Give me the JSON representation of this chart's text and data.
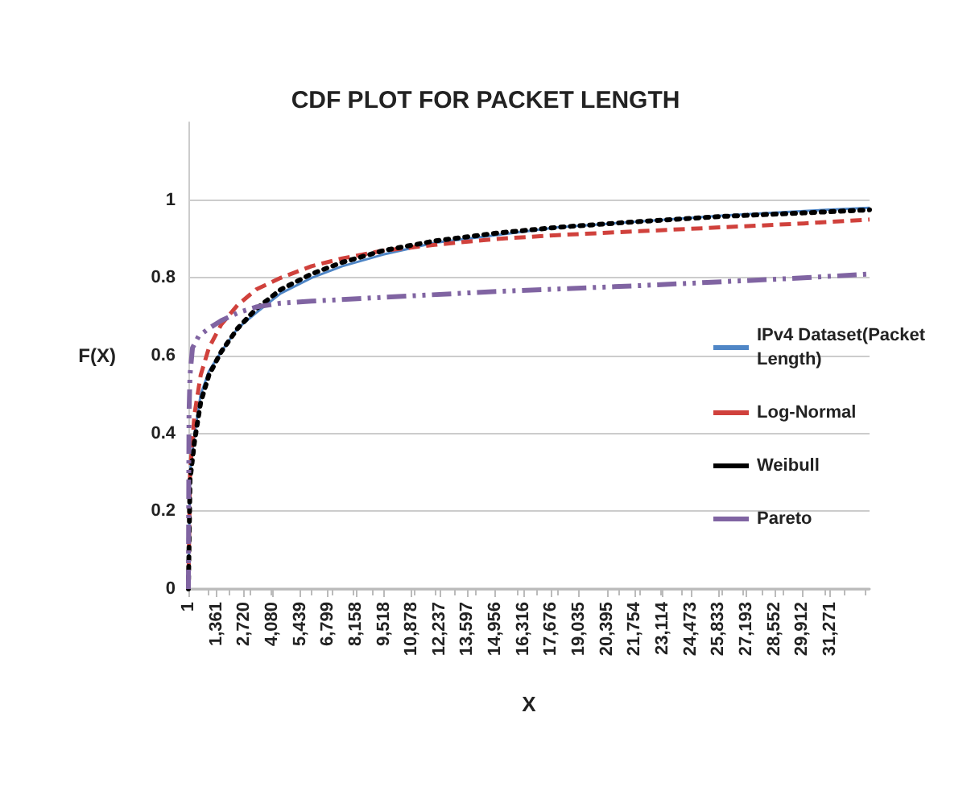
{
  "chart_data": {
    "type": "line",
    "title": "CDF PLOT FOR PACKET LENGTH",
    "xlabel": "X",
    "ylabel": "F(X)",
    "xlim": [
      1,
      33200
    ],
    "ylim": [
      0,
      1.2
    ],
    "yticks": [
      0,
      0.2,
      0.4,
      0.6,
      0.8,
      1
    ],
    "xticks": [
      {
        "value": 1,
        "label": "1"
      },
      {
        "value": 1361,
        "label": "1,361"
      },
      {
        "value": 2720,
        "label": "2,720"
      },
      {
        "value": 4080,
        "label": "4,080"
      },
      {
        "value": 5439,
        "label": "5,439"
      },
      {
        "value": 6799,
        "label": "6,799"
      },
      {
        "value": 8158,
        "label": "8,158"
      },
      {
        "value": 9518,
        "label": "9,518"
      },
      {
        "value": 10878,
        "label": "10,878"
      },
      {
        "value": 12237,
        "label": "12,237"
      },
      {
        "value": 13597,
        "label": "13,597"
      },
      {
        "value": 14956,
        "label": "14,956"
      },
      {
        "value": 16316,
        "label": "16,316"
      },
      {
        "value": 17676,
        "label": "17,676"
      },
      {
        "value": 19035,
        "label": "19,035"
      },
      {
        "value": 20395,
        "label": "20,395"
      },
      {
        "value": 21754,
        "label": "21,754"
      },
      {
        "value": 23114,
        "label": "23,114"
      },
      {
        "value": 24473,
        "label": "24,473"
      },
      {
        "value": 25833,
        "label": "25,833"
      },
      {
        "value": 27193,
        "label": "27,193"
      },
      {
        "value": 28552,
        "label": "28,552"
      },
      {
        "value": 29912,
        "label": "29,912"
      },
      {
        "value": 31271,
        "label": "31,271"
      }
    ],
    "grid": "y",
    "legend": "right",
    "marker": "none",
    "series": [
      {
        "name": "IPv4 Dataset(Packet Length)",
        "color": "#4f86c6",
        "line_style": "solid",
        "x": [
          1,
          80,
          300,
          600,
          1000,
          1600,
          2400,
          3300,
          4500,
          6000,
          7500,
          9500,
          12000,
          15000,
          18000,
          22000,
          26000,
          30000,
          33200
        ],
        "values": [
          0,
          0.3,
          0.4,
          0.5,
          0.56,
          0.61,
          0.67,
          0.71,
          0.76,
          0.8,
          0.83,
          0.86,
          0.89,
          0.91,
          0.93,
          0.945,
          0.96,
          0.972,
          0.98
        ]
      },
      {
        "name": "Log-Normal",
        "color": "#d0413c",
        "line_style": "dashed",
        "x": [
          1,
          80,
          300,
          600,
          1000,
          1600,
          2400,
          3300,
          4500,
          6000,
          7500,
          9500,
          12000,
          15000,
          18000,
          22000,
          26000,
          30000,
          33200
        ],
        "values": [
          0,
          0.3,
          0.45,
          0.55,
          0.62,
          0.68,
          0.73,
          0.77,
          0.8,
          0.83,
          0.85,
          0.87,
          0.885,
          0.9,
          0.91,
          0.92,
          0.93,
          0.94,
          0.95
        ]
      },
      {
        "name": "Weibull",
        "color": "#000000",
        "line_style": "dotted",
        "x": [
          1,
          80,
          300,
          600,
          1000,
          1600,
          2400,
          3300,
          4500,
          6000,
          7500,
          9500,
          12000,
          15000,
          18000,
          22000,
          26000,
          30000,
          33200
        ],
        "values": [
          0,
          0.28,
          0.38,
          0.48,
          0.55,
          0.61,
          0.67,
          0.72,
          0.77,
          0.81,
          0.84,
          0.87,
          0.895,
          0.915,
          0.93,
          0.945,
          0.958,
          0.967,
          0.975
        ]
      },
      {
        "name": "Pareto",
        "color": "#8064a2",
        "line_style": "dashdot",
        "x": [
          1,
          30,
          80,
          200,
          500,
          1000,
          1600,
          2400,
          3300,
          4500,
          6000,
          9500,
          15000,
          22000,
          30000,
          33200
        ],
        "values": [
          0,
          0.45,
          0.55,
          0.62,
          0.65,
          0.67,
          0.69,
          0.71,
          0.725,
          0.735,
          0.74,
          0.75,
          0.765,
          0.78,
          0.8,
          0.81
        ]
      }
    ]
  }
}
